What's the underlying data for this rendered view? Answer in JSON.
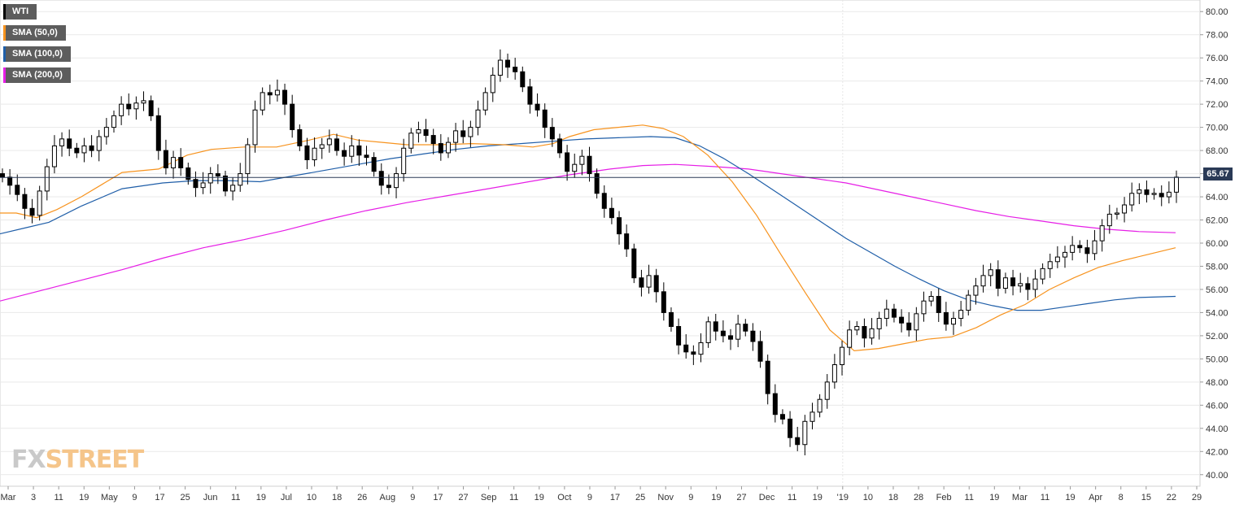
{
  "chart_data": {
    "type": "candlestick",
    "title": "",
    "instrument": "WTI",
    "last_price": "65.67",
    "ylim": [
      39,
      81
    ],
    "y_ticks": [
      "40.00",
      "42.00",
      "44.00",
      "46.00",
      "48.00",
      "50.00",
      "52.00",
      "54.00",
      "56.00",
      "58.00",
      "60.00",
      "62.00",
      "64.00",
      "66.00",
      "68.00",
      "70.00",
      "72.00",
      "74.00",
      "76.00",
      "78.00",
      "80.00"
    ],
    "x_ticks": [
      "Mar",
      "3",
      "11",
      "19",
      "May",
      "9",
      "17",
      "25",
      "Jun",
      "11",
      "19",
      "Jul",
      "10",
      "18",
      "26",
      "Aug",
      "9",
      "17",
      "27",
      "Sep",
      "11",
      "19",
      "Oct",
      "9",
      "17",
      "25",
      "Nov",
      "9",
      "19",
      "27",
      "Dec",
      "11",
      "19",
      "'19",
      "10",
      "18",
      "28",
      "Feb",
      "11",
      "19",
      "Mar",
      "11",
      "19",
      "Apr",
      "8",
      "15",
      "22",
      "29"
    ],
    "legend": [
      {
        "label": "WTI",
        "color": "#000000"
      },
      {
        "label": "SMA (50,0)",
        "color": "#f7931e"
      },
      {
        "label": "SMA (100,0)",
        "color": "#1f5ea8"
      },
      {
        "label": "SMA (200,0)",
        "color": "#e61ee6"
      }
    ],
    "close_path": [
      65.7,
      65.0,
      64.2,
      63.0,
      62.4,
      64.5,
      66.6,
      68.4,
      69.0,
      68.2,
      67.8,
      68.4,
      68.0,
      69.2,
      70.0,
      71.0,
      72.0,
      71.6,
      72.1,
      72.3,
      71.0,
      68.0,
      66.5,
      67.4,
      66.5,
      65.5,
      64.8,
      65.2,
      66.0,
      65.8,
      64.5,
      65.0,
      66.0,
      68.5,
      71.5,
      73.0,
      72.8,
      73.2,
      72.0,
      69.8,
      68.4,
      67.2,
      68.2,
      68.5,
      69.0,
      68.0,
      67.5,
      68.4,
      67.6,
      67.4,
      66.2,
      65.0,
      64.8,
      66.0,
      68.2,
      69.5,
      69.8,
      69.3,
      68.6,
      67.8,
      68.7,
      69.7,
      69.2,
      70.0,
      71.5,
      73.0,
      74.5,
      75.8,
      75.2,
      74.8,
      73.5,
      72.0,
      71.5,
      70.0,
      69.0,
      67.8,
      66.2,
      66.8,
      67.5,
      66.0,
      64.3,
      63.0,
      62.2,
      60.8,
      59.5,
      57.0,
      56.2,
      57.2,
      55.8,
      54.0,
      52.8,
      51.2,
      50.6,
      50.4,
      51.4,
      53.2,
      52.4,
      52.0,
      51.7,
      53.0,
      52.4,
      51.5,
      49.8,
      47.0,
      45.2,
      44.8,
      43.2,
      42.6,
      44.6,
      45.4,
      46.5,
      48.0,
      49.5,
      51.0,
      52.5,
      52.8,
      51.8,
      52.6,
      53.5,
      54.3,
      53.6,
      53.1,
      52.5,
      53.9,
      55.0,
      55.4,
      54.0,
      53.0,
      53.5,
      54.2,
      55.5,
      56.3,
      57.2,
      57.7,
      56.1,
      57.0,
      56.3,
      56.5,
      56.0,
      56.9,
      57.8,
      58.4,
      58.8,
      59.2,
      59.8,
      59.6,
      59.1,
      60.2,
      61.5,
      62.5,
      62.6,
      63.3,
      64.3,
      64.6,
      64.2,
      64.3,
      64.0,
      64.4,
      65.7
    ],
    "sma_50": [
      [
        0,
        62.6
      ],
      [
        20,
        62.6
      ],
      [
        45,
        62.2
      ],
      [
        70,
        62.9
      ],
      [
        100,
        64.0
      ],
      [
        150,
        66.1
      ],
      [
        195,
        66.4
      ],
      [
        230,
        67.6
      ],
      [
        260,
        68.1
      ],
      [
        300,
        68.3
      ],
      [
        340,
        68.3
      ],
      [
        380,
        68.9
      ],
      [
        410,
        69.4
      ],
      [
        440,
        68.9
      ],
      [
        470,
        68.7
      ],
      [
        500,
        68.5
      ],
      [
        540,
        68.5
      ],
      [
        580,
        68.6
      ],
      [
        620,
        68.5
      ],
      [
        655,
        68.3
      ],
      [
        680,
        68.6
      ],
      [
        700,
        69.2
      ],
      [
        730,
        69.8
      ],
      [
        760,
        70.0
      ],
      [
        790,
        70.2
      ],
      [
        815,
        69.9
      ],
      [
        840,
        69.2
      ],
      [
        870,
        67.6
      ],
      [
        900,
        65.3
      ],
      [
        930,
        62.4
      ],
      [
        960,
        59.0
      ],
      [
        990,
        55.7
      ],
      [
        1020,
        52.5
      ],
      [
        1050,
        50.7
      ],
      [
        1080,
        50.9
      ],
      [
        1110,
        51.3
      ],
      [
        1140,
        51.7
      ],
      [
        1170,
        51.9
      ],
      [
        1200,
        52.7
      ],
      [
        1230,
        53.8
      ],
      [
        1260,
        54.7
      ],
      [
        1290,
        56.0
      ],
      [
        1320,
        57.0
      ],
      [
        1350,
        57.9
      ],
      [
        1380,
        58.5
      ],
      [
        1410,
        59.0
      ],
      [
        1445,
        59.6
      ]
    ],
    "sma_100": [
      [
        0,
        60.8
      ],
      [
        30,
        61.3
      ],
      [
        60,
        61.8
      ],
      [
        100,
        63.2
      ],
      [
        150,
        64.7
      ],
      [
        200,
        65.2
      ],
      [
        240,
        65.4
      ],
      [
        280,
        65.4
      ],
      [
        320,
        65.3
      ],
      [
        360,
        65.8
      ],
      [
        400,
        66.3
      ],
      [
        440,
        66.8
      ],
      [
        480,
        67.3
      ],
      [
        520,
        67.7
      ],
      [
        560,
        68.1
      ],
      [
        600,
        68.4
      ],
      [
        640,
        68.6
      ],
      [
        680,
        68.8
      ],
      [
        720,
        69.0
      ],
      [
        760,
        69.1
      ],
      [
        800,
        69.2
      ],
      [
        830,
        69.1
      ],
      [
        860,
        68.4
      ],
      [
        890,
        67.3
      ],
      [
        920,
        66.0
      ],
      [
        950,
        64.6
      ],
      [
        980,
        63.2
      ],
      [
        1010,
        61.8
      ],
      [
        1040,
        60.4
      ],
      [
        1070,
        59.2
      ],
      [
        1100,
        58.0
      ],
      [
        1130,
        56.9
      ],
      [
        1160,
        55.9
      ],
      [
        1190,
        55.1
      ],
      [
        1220,
        54.6
      ],
      [
        1250,
        54.2
      ],
      [
        1280,
        54.2
      ],
      [
        1310,
        54.5
      ],
      [
        1340,
        54.8
      ],
      [
        1370,
        55.1
      ],
      [
        1400,
        55.3
      ],
      [
        1445,
        55.4
      ]
    ],
    "sma_200": [
      [
        0,
        55.0
      ],
      [
        50,
        55.9
      ],
      [
        100,
        56.8
      ],
      [
        150,
        57.7
      ],
      [
        200,
        58.7
      ],
      [
        250,
        59.6
      ],
      [
        300,
        60.3
      ],
      [
        350,
        61.1
      ],
      [
        400,
        62.0
      ],
      [
        450,
        62.8
      ],
      [
        500,
        63.5
      ],
      [
        550,
        64.1
      ],
      [
        600,
        64.7
      ],
      [
        650,
        65.3
      ],
      [
        700,
        65.9
      ],
      [
        750,
        66.4
      ],
      [
        790,
        66.7
      ],
      [
        830,
        66.8
      ],
      [
        880,
        66.6
      ],
      [
        920,
        66.4
      ],
      [
        960,
        66.0
      ],
      [
        1000,
        65.6
      ],
      [
        1040,
        65.2
      ],
      [
        1080,
        64.6
      ],
      [
        1120,
        64.0
      ],
      [
        1160,
        63.4
      ],
      [
        1200,
        62.8
      ],
      [
        1240,
        62.3
      ],
      [
        1280,
        61.9
      ],
      [
        1320,
        61.5
      ],
      [
        1360,
        61.2
      ],
      [
        1400,
        61.0
      ],
      [
        1445,
        60.9
      ]
    ]
  },
  "branding": {
    "fx": "FX",
    "street": "STREET"
  }
}
